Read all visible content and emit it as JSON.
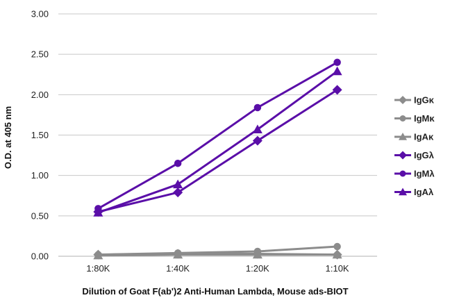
{
  "chart_data": {
    "type": "line",
    "title": "",
    "xlabel": "Dilution of Goat F(ab')2 Anti-Human Lambda, Mouse ads-BIOT",
    "ylabel": "O.D. at 405 nm",
    "categories": [
      "1:80K",
      "1:40K",
      "1:20K",
      "1:10K"
    ],
    "ylim": [
      0,
      3.0
    ],
    "yticks": [
      "0.00",
      "0.50",
      "1.00",
      "1.50",
      "2.00",
      "2.50",
      "3.00"
    ],
    "grid": "horizontal",
    "legend_position": "right",
    "series": [
      {
        "name": "IgGκ",
        "marker": "diamond",
        "color": "#8c8c8c",
        "values": [
          0.02,
          0.03,
          0.03,
          0.02
        ]
      },
      {
        "name": "IgMκ",
        "marker": "circle",
        "color": "#8c8c8c",
        "values": [
          0.02,
          0.04,
          0.06,
          0.12
        ]
      },
      {
        "name": "IgAκ",
        "marker": "triangle",
        "color": "#8c8c8c",
        "values": [
          0.01,
          0.02,
          0.02,
          0.02
        ]
      },
      {
        "name": "IgGλ",
        "marker": "diamond",
        "color": "#5a0ea8",
        "values": [
          0.55,
          0.79,
          1.43,
          2.06
        ]
      },
      {
        "name": "IgMλ",
        "marker": "circle",
        "color": "#5a0ea8",
        "values": [
          0.59,
          1.15,
          1.84,
          2.4
        ]
      },
      {
        "name": "IgAλ",
        "marker": "triangle",
        "color": "#5a0ea8",
        "values": [
          0.54,
          0.89,
          1.57,
          2.29
        ]
      }
    ]
  }
}
